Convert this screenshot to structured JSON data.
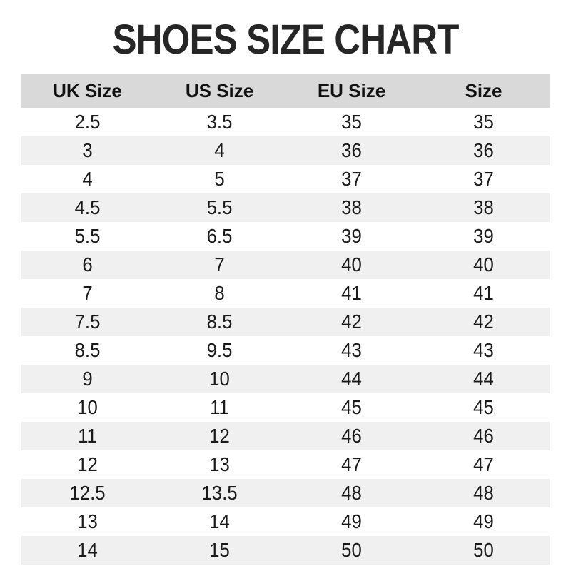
{
  "chart_data": {
    "type": "table",
    "title": "SHOES SIZE CHART",
    "columns": [
      "UK Size",
      "US Size",
      "EU Size",
      "Size"
    ],
    "rows": [
      [
        "2.5",
        "3.5",
        "35",
        "35"
      ],
      [
        "3",
        "4",
        "36",
        "36"
      ],
      [
        "4",
        "5",
        "37",
        "37"
      ],
      [
        "4.5",
        "5.5",
        "38",
        "38"
      ],
      [
        "5.5",
        "6.5",
        "39",
        "39"
      ],
      [
        "6",
        "7",
        "40",
        "40"
      ],
      [
        "7",
        "8",
        "41",
        "41"
      ],
      [
        "7.5",
        "8.5",
        "42",
        "42"
      ],
      [
        "8.5",
        "9.5",
        "43",
        "43"
      ],
      [
        "9",
        "10",
        "44",
        "44"
      ],
      [
        "10",
        "11",
        "45",
        "45"
      ],
      [
        "11",
        "12",
        "46",
        "46"
      ],
      [
        "12",
        "13",
        "47",
        "47"
      ],
      [
        "12.5",
        "13.5",
        "48",
        "48"
      ],
      [
        "13",
        "14",
        "49",
        "49"
      ],
      [
        "14",
        "15",
        "50",
        "50"
      ]
    ],
    "layout": {
      "striped": true,
      "header_background": "#d9d9d9",
      "stripe_background": "#f0f0f0",
      "title_color": "#262626",
      "text_color": "#1a1a1a"
    }
  }
}
